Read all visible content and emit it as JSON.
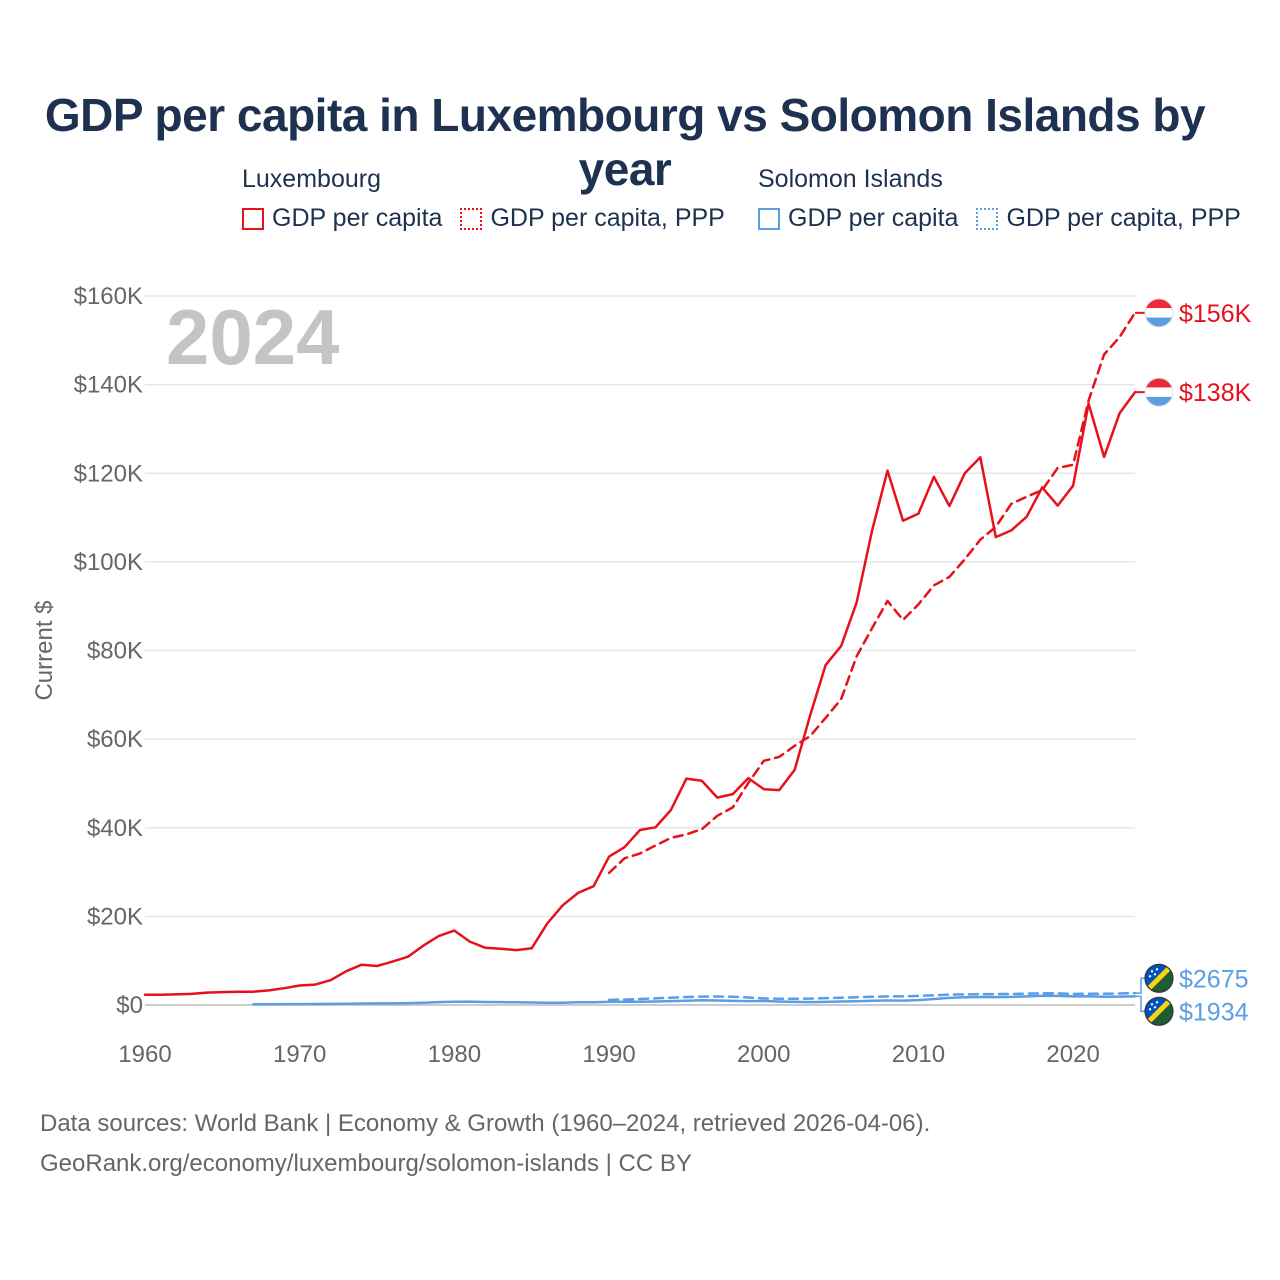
{
  "chart_data": {
    "type": "line",
    "title": "GDP per capita in Luxembourg vs Solomon Islands by year",
    "year_label": "2024",
    "ylabel": "Current $",
    "xlabel": "",
    "xlim": [
      1960,
      2024
    ],
    "ylim": [
      0,
      160000
    ],
    "y_ticks": [
      {
        "value": 0,
        "label": "$0"
      },
      {
        "value": 20000,
        "label": "$20K"
      },
      {
        "value": 40000,
        "label": "$40K"
      },
      {
        "value": 60000,
        "label": "$60K"
      },
      {
        "value": 80000,
        "label": "$80K"
      },
      {
        "value": 100000,
        "label": "$100K"
      },
      {
        "value": 120000,
        "label": "$120K"
      },
      {
        "value": 140000,
        "label": "$140K"
      },
      {
        "value": 160000,
        "label": "$160K"
      }
    ],
    "x_ticks": [
      {
        "value": 1960,
        "label": "1960"
      },
      {
        "value": 1970,
        "label": "1970"
      },
      {
        "value": 1980,
        "label": "1980"
      },
      {
        "value": 1990,
        "label": "1990"
      },
      {
        "value": 2000,
        "label": "2000"
      },
      {
        "value": 2010,
        "label": "2010"
      },
      {
        "value": 2020,
        "label": "2020"
      }
    ],
    "legend": {
      "groups": [
        {
          "country": "Luxembourg",
          "items": [
            "GDP per capita",
            "GDP per capita, PPP"
          ]
        },
        {
          "country": "Solomon Islands",
          "items": [
            "GDP per capita",
            "GDP per capita, PPP"
          ]
        }
      ]
    },
    "colors": {
      "luxembourg": "#e8111b",
      "solomon_islands": "#5b9ee2"
    },
    "series": [
      {
        "name": "Luxembourg GDP per capita",
        "country": "luxembourg",
        "style": "solid",
        "end_label": "$138K",
        "x": [
          1960,
          1961,
          1962,
          1963,
          1964,
          1965,
          1966,
          1967,
          1968,
          1969,
          1970,
          1971,
          1972,
          1973,
          1974,
          1975,
          1976,
          1977,
          1978,
          1979,
          1980,
          1981,
          1982,
          1983,
          1984,
          1985,
          1986,
          1987,
          1988,
          1989,
          1990,
          1991,
          1992,
          1993,
          1994,
          1995,
          1996,
          1997,
          1998,
          1999,
          2000,
          2001,
          2002,
          2003,
          2004,
          2005,
          2006,
          2007,
          2008,
          2009,
          2010,
          2011,
          2012,
          2013,
          2014,
          2015,
          2016,
          2017,
          2018,
          2019,
          2020,
          2021,
          2022,
          2023,
          2024
        ],
        "values": [
          2300,
          2300,
          2400,
          2500,
          2800,
          2900,
          3000,
          3000,
          3300,
          3800,
          4400,
          4600,
          5600,
          7600,
          9100,
          8800,
          9800,
          10900,
          13400,
          15600,
          16800,
          14300,
          12900,
          12700,
          12400,
          12800,
          18400,
          22500,
          25300,
          26800,
          33500,
          35600,
          39500,
          40100,
          44000,
          51100,
          50600,
          46800,
          47600,
          51200,
          48700,
          48500,
          53100,
          65400,
          76700,
          81000,
          90800,
          107000,
          120600,
          109300,
          110900,
          119200,
          112600,
          120000,
          123600,
          105600,
          107100,
          110200,
          116800,
          112700,
          117200,
          135700,
          123700,
          133500,
          138300
        ]
      },
      {
        "name": "Luxembourg GDP per capita, PPP",
        "country": "luxembourg",
        "style": "dashed",
        "end_label": "$156K",
        "x": [
          1990,
          1991,
          1992,
          1993,
          1994,
          1995,
          1996,
          1997,
          1998,
          1999,
          2000,
          2001,
          2002,
          2003,
          2004,
          2005,
          2006,
          2007,
          2008,
          2009,
          2010,
          2011,
          2012,
          2013,
          2014,
          2015,
          2016,
          2017,
          2018,
          2019,
          2020,
          2021,
          2022,
          2023,
          2024
        ],
        "values": [
          29800,
          33100,
          34200,
          36000,
          37700,
          38500,
          39700,
          42700,
          44600,
          50100,
          55100,
          56000,
          58500,
          60700,
          64800,
          69000,
          78700,
          85000,
          91200,
          86900,
          90400,
          94700,
          96600,
          100600,
          105000,
          107900,
          113100,
          114700,
          116200,
          121200,
          121900,
          136400,
          146800,
          150700,
          156200
        ]
      },
      {
        "name": "Solomon Islands GDP per capita",
        "country": "solomon",
        "style": "solid",
        "end_label": "$1934",
        "x": [
          1967,
          1968,
          1969,
          1970,
          1971,
          1972,
          1973,
          1974,
          1975,
          1976,
          1977,
          1978,
          1979,
          1980,
          1981,
          1982,
          1983,
          1984,
          1985,
          1986,
          1987,
          1988,
          1989,
          1990,
          1991,
          1992,
          1993,
          1994,
          1995,
          1996,
          1997,
          1998,
          1999,
          2000,
          2001,
          2002,
          2003,
          2004,
          2005,
          2006,
          2007,
          2008,
          2009,
          2010,
          2011,
          2012,
          2013,
          2014,
          2015,
          2016,
          2017,
          2018,
          2019,
          2020,
          2021,
          2022,
          2023,
          2024
        ],
        "values": [
          180,
          190,
          200,
          210,
          220,
          240,
          270,
          340,
          350,
          360,
          420,
          520,
          650,
          720,
          760,
          680,
          650,
          620,
          560,
          490,
          520,
          600,
          620,
          690,
          720,
          750,
          790,
          880,
          980,
          1050,
          1020,
          930,
          880,
          900,
          800,
          700,
          650,
          700,
          780,
          860,
          950,
          1020,
          1000,
          1100,
          1350,
          1600,
          1750,
          1800,
          1780,
          1830,
          1950,
          2080,
          2050,
          1930,
          1970,
          1880,
          1900,
          1934
        ]
      },
      {
        "name": "Solomon Islands GDP per capita, PPP",
        "country": "solomon",
        "style": "dashed",
        "end_label": "$2675",
        "x": [
          1990,
          1991,
          1992,
          1993,
          1994,
          1995,
          1996,
          1997,
          1998,
          1999,
          2000,
          2001,
          2002,
          2003,
          2004,
          2005,
          2006,
          2007,
          2008,
          2009,
          2010,
          2011,
          2012,
          2013,
          2014,
          2015,
          2016,
          2017,
          2018,
          2019,
          2020,
          2021,
          2022,
          2023,
          2024
        ],
        "values": [
          1150,
          1250,
          1350,
          1500,
          1650,
          1800,
          1900,
          1920,
          1850,
          1700,
          1500,
          1400,
          1400,
          1450,
          1550,
          1650,
          1750,
          1850,
          1950,
          1950,
          2050,
          2200,
          2350,
          2400,
          2450,
          2450,
          2500,
          2550,
          2650,
          2650,
          2500,
          2550,
          2550,
          2600,
          2675
        ]
      }
    ]
  },
  "footer": {
    "line1": "Data sources: World Bank | Economy & Growth (1960–2024, retrieved 2026-04-06).",
    "line2": "GeoRank.org/economy/luxembourg/solomon-islands | CC BY"
  }
}
